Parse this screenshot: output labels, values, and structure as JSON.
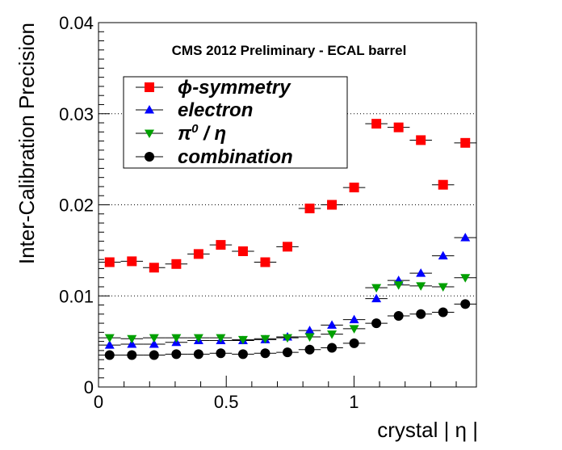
{
  "chart_data": {
    "type": "scatter",
    "title": "CMS 2012 Preliminary - ECAL barrel",
    "xlabel": "crystal | η |",
    "ylabel": "Inter-Calibration Precision",
    "xlim": [
      0,
      1.479
    ],
    "ylim": [
      0,
      0.04
    ],
    "x_ticks": [
      0,
      0.5,
      1
    ],
    "x_tick_labels": [
      "0",
      "0.5",
      "1"
    ],
    "y_ticks": [
      0,
      0.01,
      0.02,
      0.03,
      0.04
    ],
    "y_tick_labels": [
      "0",
      "0.01",
      "0.02",
      "0.03",
      "0.04"
    ],
    "grid": "horizontal dotted at 0.01, 0.02, 0.03",
    "x_error_halfwidth": 0.0435,
    "legend_position": "top-left",
    "series": [
      {
        "name": "ϕ-symmetry",
        "legend_base": "ϕ",
        "legend_rest": "-symmetry",
        "color": "#ff0000",
        "marker": "square",
        "x": [
          0.0435,
          0.1305,
          0.2175,
          0.3045,
          0.3915,
          0.4785,
          0.5655,
          0.6525,
          0.7395,
          0.8265,
          0.9135,
          1.0005,
          1.0875,
          1.1745,
          1.2615,
          1.3485,
          1.4355
        ],
        "y": [
          0.0137,
          0.0138,
          0.0131,
          0.0135,
          0.0146,
          0.0156,
          0.0149,
          0.0137,
          0.0154,
          0.0196,
          0.02,
          0.0219,
          0.0289,
          0.0285,
          0.0271,
          0.0222,
          0.0268
        ]
      },
      {
        "name": "electron",
        "legend_base": "electron",
        "legend_rest": "",
        "color": "#0000ff",
        "marker": "triangle-up",
        "x": [
          0.0435,
          0.1305,
          0.2175,
          0.3045,
          0.3915,
          0.4785,
          0.5655,
          0.6525,
          0.7395,
          0.8265,
          0.9135,
          1.0005,
          1.0875,
          1.1745,
          1.2615,
          1.3485,
          1.4355
        ],
        "y": [
          0.0046,
          0.0047,
          0.0047,
          0.0049,
          0.0051,
          0.0051,
          0.0051,
          0.0052,
          0.0055,
          0.0062,
          0.0068,
          0.0074,
          0.0097,
          0.0117,
          0.0125,
          0.0144,
          0.0164
        ]
      },
      {
        "name": "π⁰ / η",
        "legend_base": "π",
        "legend_sup": "0",
        "legend_rest": " / η",
        "color": "#00a000",
        "marker": "triangle-down",
        "x": [
          0.0435,
          0.1305,
          0.2175,
          0.3045,
          0.3915,
          0.4785,
          0.5655,
          0.6525,
          0.7395,
          0.8265,
          0.9135,
          1.0005,
          1.0875,
          1.1745,
          1.2615,
          1.3485,
          1.4355
        ],
        "y": [
          0.0054,
          0.0053,
          0.0054,
          0.0054,
          0.0054,
          0.0054,
          0.0052,
          0.0053,
          0.0054,
          0.0055,
          0.0058,
          0.0064,
          0.0109,
          0.0112,
          0.0111,
          0.011,
          0.012
        ]
      },
      {
        "name": "combination",
        "legend_base": "combination",
        "legend_rest": "",
        "color": "#000000",
        "marker": "circle",
        "x": [
          0.0435,
          0.1305,
          0.2175,
          0.3045,
          0.3915,
          0.4785,
          0.5655,
          0.6525,
          0.7395,
          0.8265,
          0.9135,
          1.0005,
          1.0875,
          1.1745,
          1.2615,
          1.3485,
          1.4355
        ],
        "y": [
          0.0035,
          0.0035,
          0.0035,
          0.0036,
          0.0036,
          0.0037,
          0.0036,
          0.0037,
          0.0038,
          0.0041,
          0.0043,
          0.0048,
          0.007,
          0.0078,
          0.008,
          0.0082,
          0.0091
        ]
      }
    ]
  }
}
